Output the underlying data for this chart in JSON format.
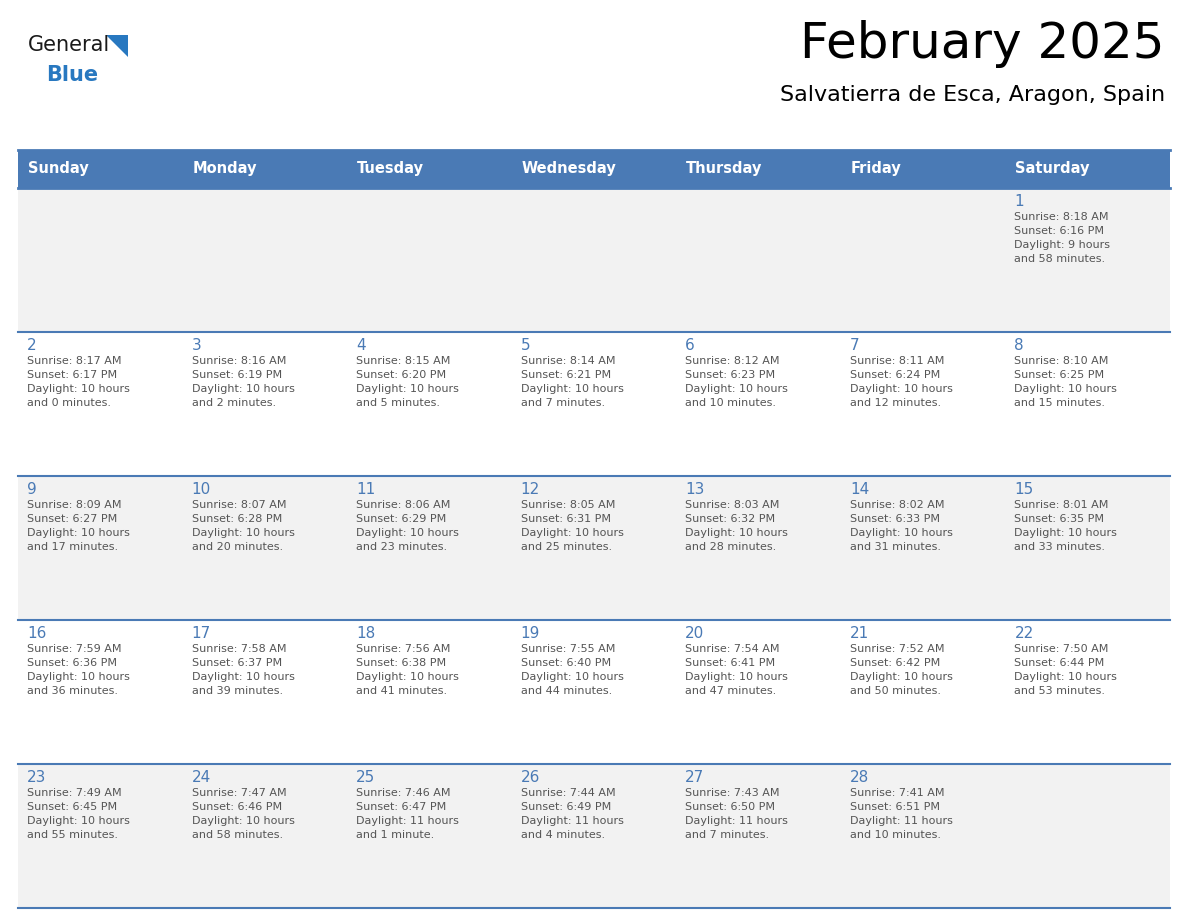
{
  "title": "February 2025",
  "subtitle": "Salvatierra de Esca, Aragon, Spain",
  "header_bg": "#4a7ab5",
  "header_text_color": "#ffffff",
  "cell_bg_week0": "#f2f2f2",
  "cell_bg_week1": "#ffffff",
  "cell_bg_week2": "#f2f2f2",
  "cell_bg_week3": "#ffffff",
  "cell_bg_week4": "#f2f2f2",
  "day_number_color": "#4a7ab5",
  "info_text_color": "#555555",
  "border_color": "#4a7ab5",
  "days_of_week": [
    "Sunday",
    "Monday",
    "Tuesday",
    "Wednesday",
    "Thursday",
    "Friday",
    "Saturday"
  ],
  "weeks": [
    [
      {
        "day": null,
        "info": ""
      },
      {
        "day": null,
        "info": ""
      },
      {
        "day": null,
        "info": ""
      },
      {
        "day": null,
        "info": ""
      },
      {
        "day": null,
        "info": ""
      },
      {
        "day": null,
        "info": ""
      },
      {
        "day": 1,
        "info": "Sunrise: 8:18 AM\nSunset: 6:16 PM\nDaylight: 9 hours\nand 58 minutes."
      }
    ],
    [
      {
        "day": 2,
        "info": "Sunrise: 8:17 AM\nSunset: 6:17 PM\nDaylight: 10 hours\nand 0 minutes."
      },
      {
        "day": 3,
        "info": "Sunrise: 8:16 AM\nSunset: 6:19 PM\nDaylight: 10 hours\nand 2 minutes."
      },
      {
        "day": 4,
        "info": "Sunrise: 8:15 AM\nSunset: 6:20 PM\nDaylight: 10 hours\nand 5 minutes."
      },
      {
        "day": 5,
        "info": "Sunrise: 8:14 AM\nSunset: 6:21 PM\nDaylight: 10 hours\nand 7 minutes."
      },
      {
        "day": 6,
        "info": "Sunrise: 8:12 AM\nSunset: 6:23 PM\nDaylight: 10 hours\nand 10 minutes."
      },
      {
        "day": 7,
        "info": "Sunrise: 8:11 AM\nSunset: 6:24 PM\nDaylight: 10 hours\nand 12 minutes."
      },
      {
        "day": 8,
        "info": "Sunrise: 8:10 AM\nSunset: 6:25 PM\nDaylight: 10 hours\nand 15 minutes."
      }
    ],
    [
      {
        "day": 9,
        "info": "Sunrise: 8:09 AM\nSunset: 6:27 PM\nDaylight: 10 hours\nand 17 minutes."
      },
      {
        "day": 10,
        "info": "Sunrise: 8:07 AM\nSunset: 6:28 PM\nDaylight: 10 hours\nand 20 minutes."
      },
      {
        "day": 11,
        "info": "Sunrise: 8:06 AM\nSunset: 6:29 PM\nDaylight: 10 hours\nand 23 minutes."
      },
      {
        "day": 12,
        "info": "Sunrise: 8:05 AM\nSunset: 6:31 PM\nDaylight: 10 hours\nand 25 minutes."
      },
      {
        "day": 13,
        "info": "Sunrise: 8:03 AM\nSunset: 6:32 PM\nDaylight: 10 hours\nand 28 minutes."
      },
      {
        "day": 14,
        "info": "Sunrise: 8:02 AM\nSunset: 6:33 PM\nDaylight: 10 hours\nand 31 minutes."
      },
      {
        "day": 15,
        "info": "Sunrise: 8:01 AM\nSunset: 6:35 PM\nDaylight: 10 hours\nand 33 minutes."
      }
    ],
    [
      {
        "day": 16,
        "info": "Sunrise: 7:59 AM\nSunset: 6:36 PM\nDaylight: 10 hours\nand 36 minutes."
      },
      {
        "day": 17,
        "info": "Sunrise: 7:58 AM\nSunset: 6:37 PM\nDaylight: 10 hours\nand 39 minutes."
      },
      {
        "day": 18,
        "info": "Sunrise: 7:56 AM\nSunset: 6:38 PM\nDaylight: 10 hours\nand 41 minutes."
      },
      {
        "day": 19,
        "info": "Sunrise: 7:55 AM\nSunset: 6:40 PM\nDaylight: 10 hours\nand 44 minutes."
      },
      {
        "day": 20,
        "info": "Sunrise: 7:54 AM\nSunset: 6:41 PM\nDaylight: 10 hours\nand 47 minutes."
      },
      {
        "day": 21,
        "info": "Sunrise: 7:52 AM\nSunset: 6:42 PM\nDaylight: 10 hours\nand 50 minutes."
      },
      {
        "day": 22,
        "info": "Sunrise: 7:50 AM\nSunset: 6:44 PM\nDaylight: 10 hours\nand 53 minutes."
      }
    ],
    [
      {
        "day": 23,
        "info": "Sunrise: 7:49 AM\nSunset: 6:45 PM\nDaylight: 10 hours\nand 55 minutes."
      },
      {
        "day": 24,
        "info": "Sunrise: 7:47 AM\nSunset: 6:46 PM\nDaylight: 10 hours\nand 58 minutes."
      },
      {
        "day": 25,
        "info": "Sunrise: 7:46 AM\nSunset: 6:47 PM\nDaylight: 11 hours\nand 1 minute."
      },
      {
        "day": 26,
        "info": "Sunrise: 7:44 AM\nSunset: 6:49 PM\nDaylight: 11 hours\nand 4 minutes."
      },
      {
        "day": 27,
        "info": "Sunrise: 7:43 AM\nSunset: 6:50 PM\nDaylight: 11 hours\nand 7 minutes."
      },
      {
        "day": 28,
        "info": "Sunrise: 7:41 AM\nSunset: 6:51 PM\nDaylight: 11 hours\nand 10 minutes."
      },
      {
        "day": null,
        "info": ""
      }
    ]
  ],
  "logo_general_color": "#1a1a1a",
  "logo_blue_color": "#2878c0",
  "logo_triangle_color": "#2878c0",
  "cell_backgrounds": [
    "#f2f2f2",
    "#ffffff",
    "#f2f2f2",
    "#ffffff",
    "#f2f2f2"
  ]
}
